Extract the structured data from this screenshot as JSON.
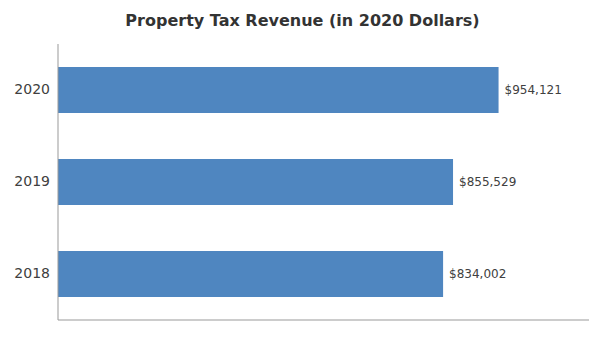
{
  "chart_data": {
    "type": "bar",
    "orientation": "horizontal",
    "title": "Property Tax Revenue (in 2020 Dollars)",
    "categories": [
      "2020",
      "2019",
      "2018"
    ],
    "values": [
      954121,
      855529,
      834002
    ],
    "value_labels": [
      "$954,121",
      "$855,529",
      "$834,002"
    ],
    "data_labels": true,
    "color": "#4F86C0",
    "xlim": [
      0,
      1150000
    ],
    "tick_labels": "y",
    "grid": false
  }
}
